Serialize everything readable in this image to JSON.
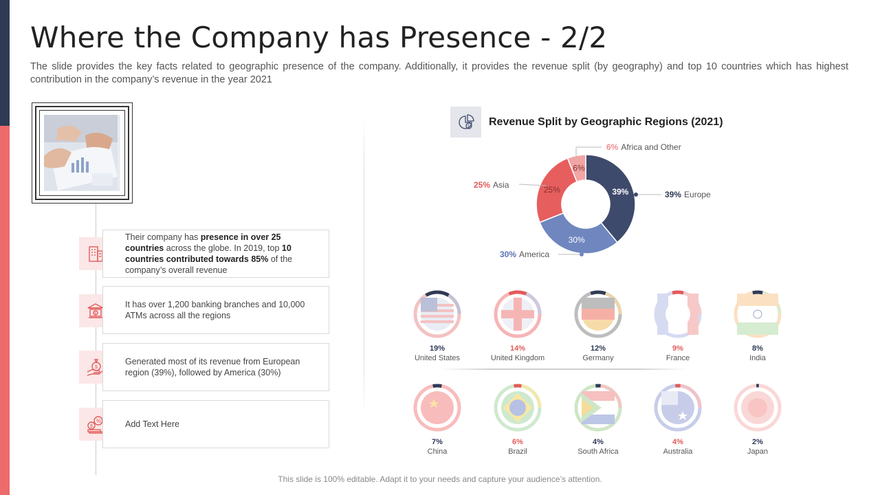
{
  "slide": {
    "title": "Where the Company has Presence - 2/2",
    "subtitle": "The slide provides the key facts related to geographic presence of the company. Additionally, it provides the revenue split (by geography) and top 10 countries which has highest contribution in the company’s revenue in the year 2021",
    "footer": "This slide is 100% editable. Adapt it to your needs and capture your audience’s attention."
  },
  "facts": [
    {
      "icon": "building-icon",
      "parts": [
        {
          "t": "Their company has ",
          "b": false
        },
        {
          "t": "presence in over 25 countries",
          "b": true
        },
        {
          "t": " across the globe. In 2019, top ",
          "b": false
        },
        {
          "t": "10 countries contributed towards 85%",
          "b": true
        },
        {
          "t": " of the company’s overall  revenue",
          "b": false
        }
      ]
    },
    {
      "icon": "bank-icon",
      "text": "It has over 1,200 banking branches and 10,000 ATMs across all the regions"
    },
    {
      "icon": "money-bag-hand-icon",
      "text": "Generated  most of its revenue  from European region (39%), followed  by America (30%)"
    },
    {
      "icon": "percent-coins-icon",
      "text": "Add Text Here"
    }
  ],
  "chart_data": {
    "type": "pie",
    "title": "Revenue Split by Geographic Regions (2021)",
    "categories": [
      "Europe",
      "America",
      "Asia",
      "Africa and Other"
    ],
    "values": [
      39,
      30,
      25,
      6
    ],
    "slice_labels": [
      "39%",
      "30%",
      "25%",
      "6%"
    ],
    "colors": [
      "#3e4a6b",
      "#6f86bf",
      "#e65e5e",
      "#f2a5a5"
    ]
  },
  "chart_labels": [
    {
      "pct": "39%",
      "name": "Europe",
      "color": "#2f3a55"
    },
    {
      "pct": "30%",
      "name": "America",
      "color": "#5b74b3"
    },
    {
      "pct": "25%",
      "name": "Asia",
      "color": "#e45a5a"
    },
    {
      "pct": "6%",
      "name": "Africa and Other",
      "color": "#ee8f8f"
    }
  ],
  "countries": [
    {
      "name": "United States",
      "pct": "19%",
      "value": 19,
      "color": "#2f3a55",
      "flag": "us"
    },
    {
      "name": "United Kingdom",
      "pct": "14%",
      "value": 14,
      "color": "#e45a5a",
      "flag": "uk"
    },
    {
      "name": "Germany",
      "pct": "12%",
      "value": 12,
      "color": "#2f3a55",
      "flag": "de"
    },
    {
      "name": "France",
      "pct": "9%",
      "value": 9,
      "color": "#e45a5a",
      "flag": "fr"
    },
    {
      "name": "India",
      "pct": "8%",
      "value": 8,
      "color": "#2f3a55",
      "flag": "in"
    },
    {
      "name": "China",
      "pct": "7%",
      "value": 7,
      "color": "#2f3a55",
      "flag": "cn"
    },
    {
      "name": "Brazil",
      "pct": "6%",
      "value": 6,
      "color": "#e45a5a",
      "flag": "br"
    },
    {
      "name": "South Africa",
      "pct": "4%",
      "value": 4,
      "color": "#2f3a55",
      "flag": "za"
    },
    {
      "name": "Australia",
      "pct": "4%",
      "value": 4,
      "color": "#e45a5a",
      "flag": "au"
    },
    {
      "name": "Japan",
      "pct": "2%",
      "value": 2,
      "color": "#2f3a55",
      "flag": "jp"
    }
  ]
}
